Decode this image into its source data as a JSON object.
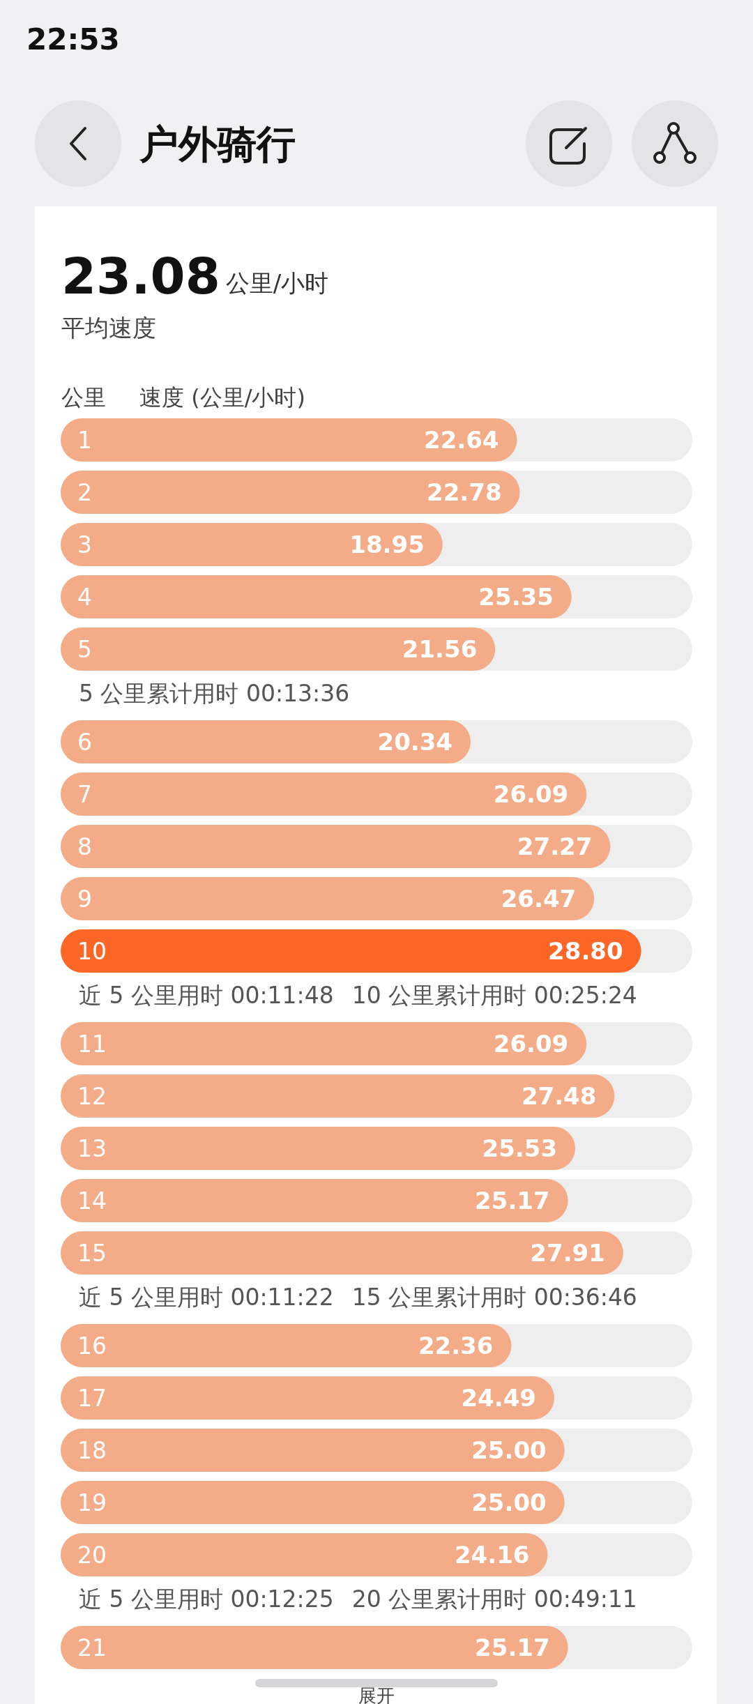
{
  "chart_data": {
    "type": "bar",
    "orientation": "horizontal",
    "title": "户外骑行",
    "subtitle": "23.08",
    "ylabel": "公里",
    "xlabel": "速度 (公里/小时)",
    "categories": [
      "1",
      "2",
      "3",
      "4",
      "5",
      "6",
      "7",
      "8",
      "9",
      "10",
      "11",
      "12",
      "13",
      "14",
      "15",
      "16",
      "17",
      "18",
      "19",
      "20",
      "21"
    ],
    "values": [
      22.64,
      22.78,
      18.95,
      25.35,
      21.56,
      20.34,
      26.09,
      27.27,
      26.47,
      28.8,
      26.09,
      27.48,
      25.53,
      25.17,
      27.91,
      22.36,
      24.49,
      25.0,
      25.0,
      24.16,
      25.17
    ],
    "value_labels": [
      "22.64",
      "22.78",
      "18.95",
      "25.35",
      "21.56",
      "20.34",
      "26.09",
      "27.27",
      "26.47",
      "28.80",
      "26.09",
      "27.48",
      "25.53",
      "25.17",
      "27.91",
      "22.36",
      "24.49",
      "25.00",
      "25.00",
      "24.16",
      "25.17"
    ],
    "colors": [
      "#f4ac88",
      "#f4ac88",
      "#f4ac88",
      "#f4ac88",
      "#f4ac88",
      "#f4ac88",
      "#f4ac88",
      "#f4ac88",
      "#f4ac88",
      "#fc6627",
      "#f4ac88",
      "#f4ac88",
      "#f4ac88",
      "#f4ac88",
      "#f4ac88",
      "#f4ac88",
      "#f4ac88",
      "#f4ac88",
      "#f4ac88",
      "#f4ac88",
      "#f4ac88"
    ],
    "annotations": [
      "22:53",
      "公里/小时",
      "平均速度",
      "5 公里累计用时 00:13:36",
      "近 5 公里用时 00:11:48",
      "10 公里累计用时 00:25:24",
      "近 5 公里用时 00:11:22",
      "15 公里累计用时 00:36:46",
      "近 5 公里用时 00:12:25",
      "20 公里累计用时 00:49:11",
      "展开"
    ]
  }
}
